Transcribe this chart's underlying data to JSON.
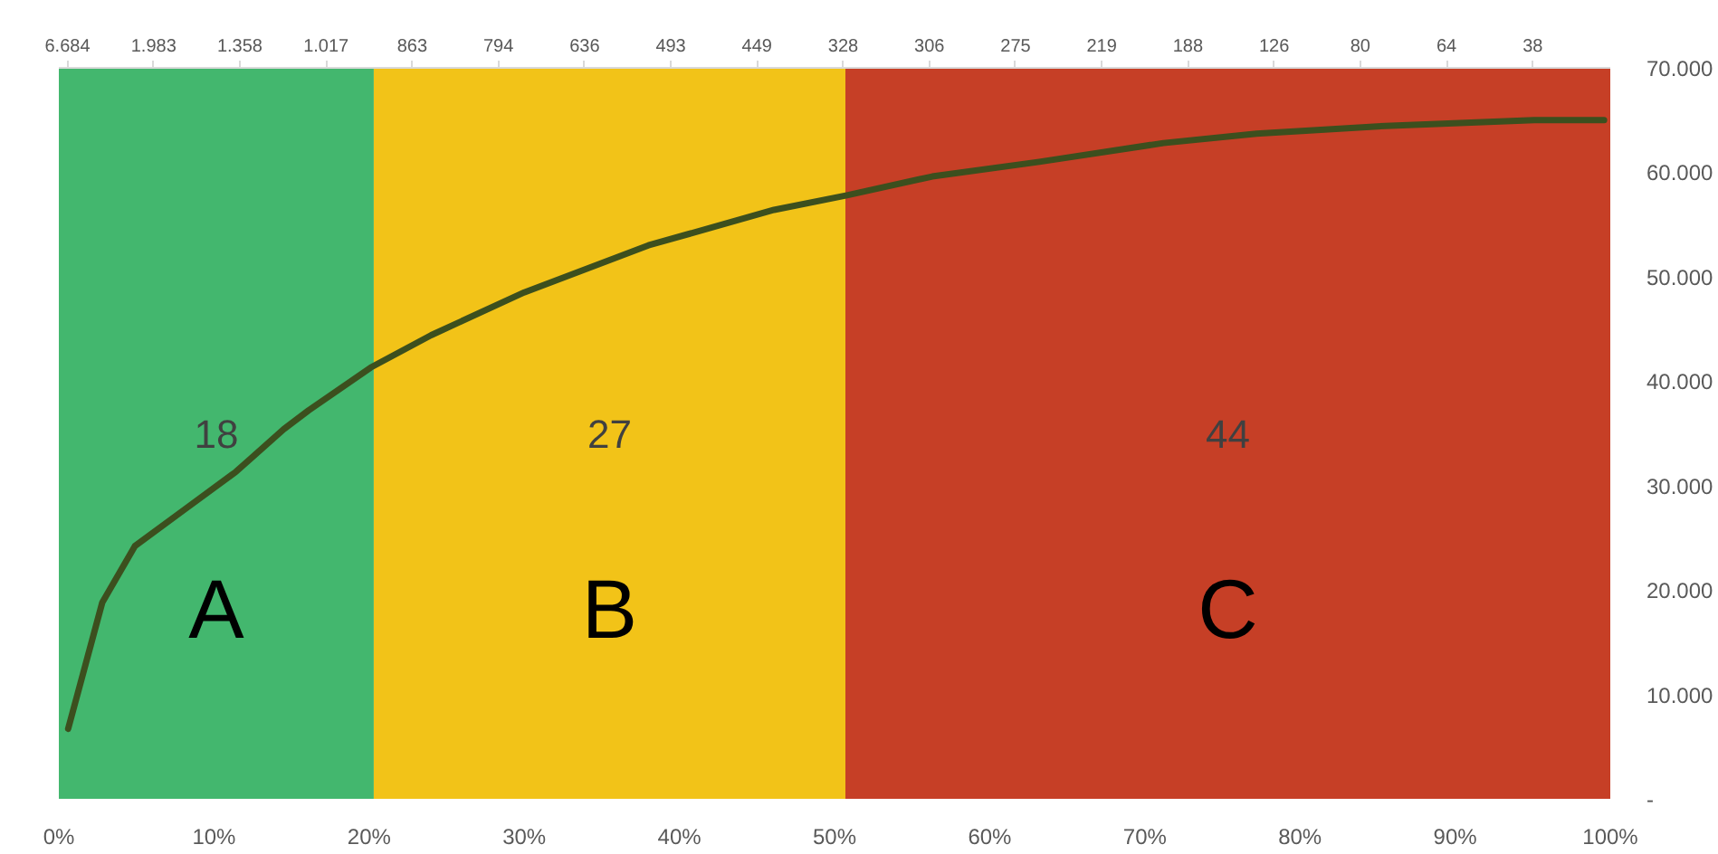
{
  "chart_data": {
    "type": "line",
    "x": [
      0.6,
      2.8,
      4.9,
      8.1,
      11.4,
      14.5,
      16.1,
      20.1,
      24.0,
      30.0,
      38.0,
      46.1,
      50.8,
      56.3,
      63.2,
      71.2,
      77.2,
      85.0,
      95.1,
      99.6
    ],
    "series": [
      {
        "color": "#3c4f1e",
        "values": [
          6700,
          18800,
          24200,
          27700,
          31300,
          35400,
          37200,
          41300,
          44400,
          48500,
          53000,
          56400,
          57800,
          59600,
          61000,
          62800,
          63700,
          64400,
          65000,
          65000
        ]
      }
    ],
    "xlim": [
      0,
      100
    ],
    "xticks": [
      {
        "value": 0,
        "label": "0%"
      },
      {
        "value": 10,
        "label": "10%"
      },
      {
        "value": 20,
        "label": "20%"
      },
      {
        "value": 30,
        "label": "30%"
      },
      {
        "value": 40,
        "label": "40%"
      },
      {
        "value": 50,
        "label": "50%"
      },
      {
        "value": 60,
        "label": "60%"
      },
      {
        "value": 70,
        "label": "70%"
      },
      {
        "value": 80,
        "label": "80%"
      },
      {
        "value": 90,
        "label": "90%"
      },
      {
        "value": 100,
        "label": "100%"
      }
    ],
    "ylim": [
      0,
      70000
    ],
    "yticks": [
      {
        "value": 0,
        "label": "-"
      },
      {
        "value": 10000,
        "label": "10.000"
      },
      {
        "value": 20000,
        "label": "20.000"
      },
      {
        "value": 30000,
        "label": "30.000"
      },
      {
        "value": 40000,
        "label": "40.000"
      },
      {
        "value": 50000,
        "label": "50.000"
      },
      {
        "value": 60000,
        "label": "60.000"
      },
      {
        "value": 70000,
        "label": "70.000"
      }
    ],
    "bands": [
      {
        "axis": "x",
        "from": 0,
        "to": 20.3,
        "label": "A",
        "color": "#43b76e"
      },
      {
        "axis": "x",
        "from": 20.3,
        "to": 50.7,
        "label": "B",
        "color": "#f2c318"
      },
      {
        "axis": "x",
        "from": 50.7,
        "to": 100,
        "label": "C",
        "color": "#c63f26"
      }
    ],
    "annotations": [
      "18",
      "27",
      "44",
      "6.684",
      "1.983",
      "1.358",
      "1.017",
      "863",
      "794",
      "636",
      "493",
      "449",
      "328",
      "306",
      "275",
      "219",
      "188",
      "126",
      "80",
      "64",
      "38"
    ],
    "line_style": "solid",
    "marker": "none"
  }
}
